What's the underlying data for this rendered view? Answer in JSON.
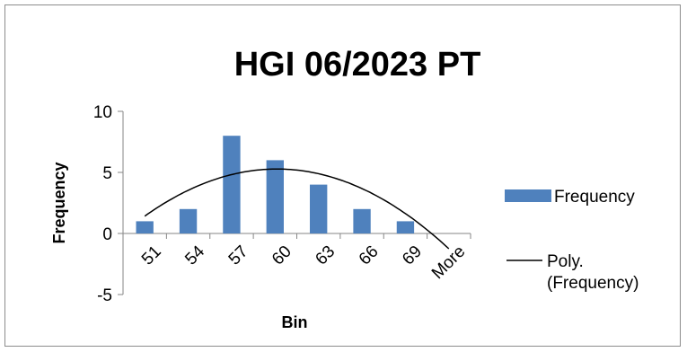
{
  "chart_data": {
    "type": "bar",
    "title": "HGI 06/2023 PT",
    "xlabel": "Bin",
    "ylabel": "Frequency",
    "categories": [
      "51",
      "54",
      "57",
      "60",
      "63",
      "66",
      "69",
      "More"
    ],
    "series": [
      {
        "name": "Frequency",
        "type": "bar",
        "values": [
          1,
          2,
          8,
          6,
          4,
          2,
          1,
          0
        ],
        "color": "#4f81bd"
      }
    ],
    "trendline": {
      "name": "Poly. (Frequency)",
      "type": "polynomial",
      "order": 2,
      "color": "#000000"
    },
    "ylim": [
      -5,
      10
    ],
    "yticks": [
      -5,
      0,
      5,
      10
    ],
    "grid": false,
    "legend_position": "right"
  }
}
